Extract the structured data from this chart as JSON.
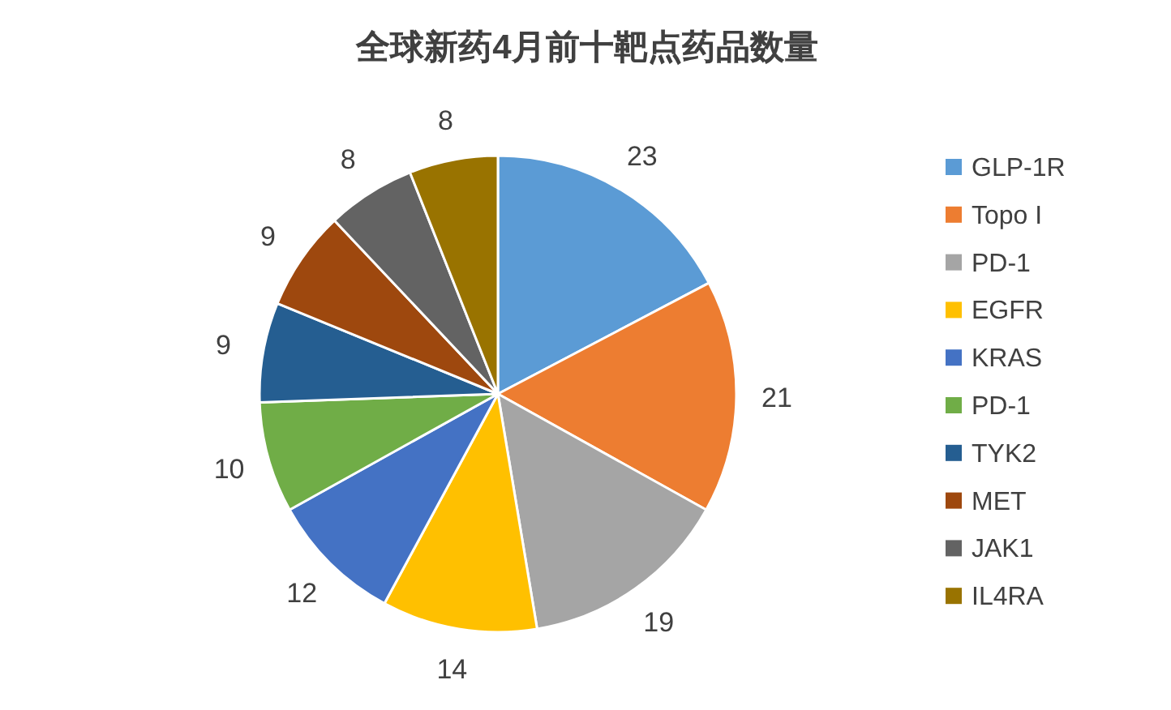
{
  "chart_data": {
    "type": "pie",
    "title": "全球新药4月前十靶点药品数量",
    "categories": [
      "GLP-1R",
      "Topo I",
      "PD-1",
      "EGFR",
      "KRAS",
      "PD-1",
      "TYK2",
      "MET",
      "JAK1",
      "IL4RA"
    ],
    "values": [
      23,
      21,
      19,
      14,
      12,
      10,
      9,
      9,
      8,
      8
    ],
    "colors": [
      "#5b9bd5",
      "#ed7d31",
      "#a5a5a5",
      "#ffc000",
      "#4472c4",
      "#70ad47",
      "#255e91",
      "#9e480e",
      "#636363",
      "#997300"
    ],
    "data_labels": true,
    "legend": "right"
  }
}
